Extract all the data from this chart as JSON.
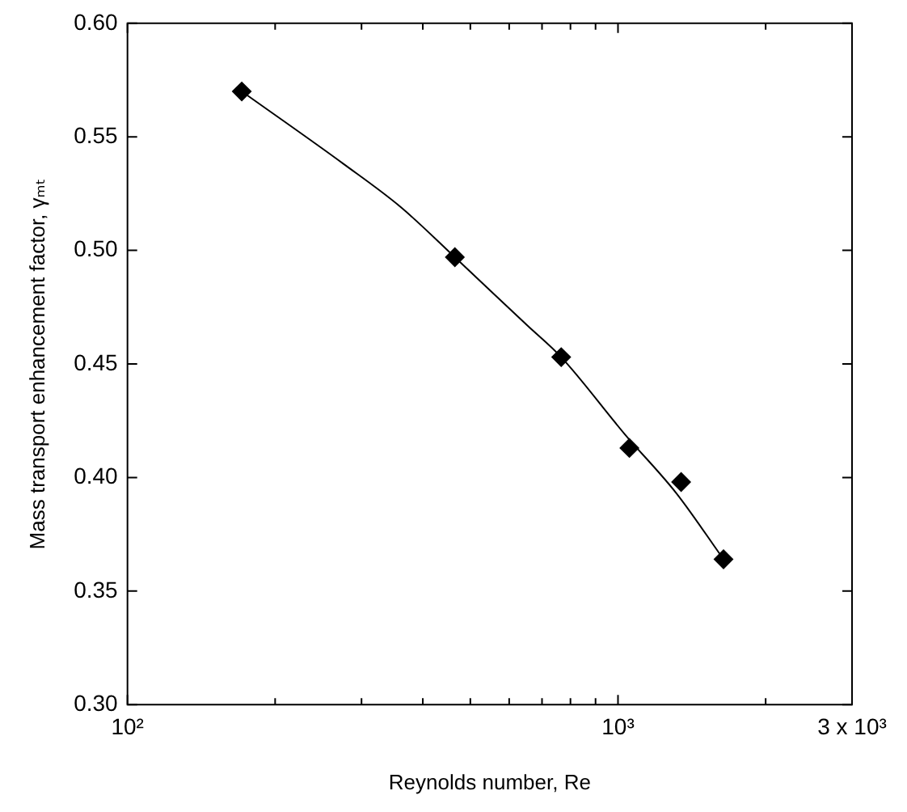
{
  "chart_data": {
    "type": "scatter",
    "xlabel": "Reynolds number, Re",
    "ylabel": "Mass transport enhancement factor, γₘₜ",
    "log": "x",
    "grid": false,
    "legend": false,
    "marker": "diamond",
    "xlim": [
      100,
      3000
    ],
    "xticks": [
      {
        "value": 100,
        "label": "10²"
      },
      {
        "value": 200,
        "label": null
      },
      {
        "value": 300,
        "label": null
      },
      {
        "value": 400,
        "label": null
      },
      {
        "value": 500,
        "label": null
      },
      {
        "value": 600,
        "label": null
      },
      {
        "value": 700,
        "label": null
      },
      {
        "value": 800,
        "label": null
      },
      {
        "value": 900,
        "label": null
      },
      {
        "value": 1000,
        "label": "10³"
      },
      {
        "value": 2000,
        "label": null
      },
      {
        "value": 3000,
        "label": "3 x 10³"
      }
    ],
    "ylim": [
      0.3,
      0.6
    ],
    "yticks": [
      {
        "value": 0.3,
        "label": "0.30"
      },
      {
        "value": 0.35,
        "label": "0.35"
      },
      {
        "value": 0.4,
        "label": "0.40"
      },
      {
        "value": 0.45,
        "label": "0.45"
      },
      {
        "value": 0.5,
        "label": "0.50"
      },
      {
        "value": 0.55,
        "label": "0.55"
      },
      {
        "value": 0.6,
        "label": "0.60"
      }
    ],
    "series": [
      {
        "color": "#000000",
        "x": [
          171,
          465,
          766,
          1055,
          1345,
          1641
        ],
        "values": [
          0.57,
          0.497,
          0.453,
          0.413,
          0.398,
          0.364
        ]
      },
      {
        "type": "line",
        "color": "#000000",
        "marker": "none",
        "line_style": "solid",
        "x": [
          171,
          276,
          361,
          465,
          653,
          766,
          1033,
          1316,
          1641
        ],
        "values": [
          0.57,
          0.538,
          0.519,
          0.497,
          0.467,
          0.453,
          0.419,
          0.393,
          0.364
        ]
      }
    ]
  }
}
